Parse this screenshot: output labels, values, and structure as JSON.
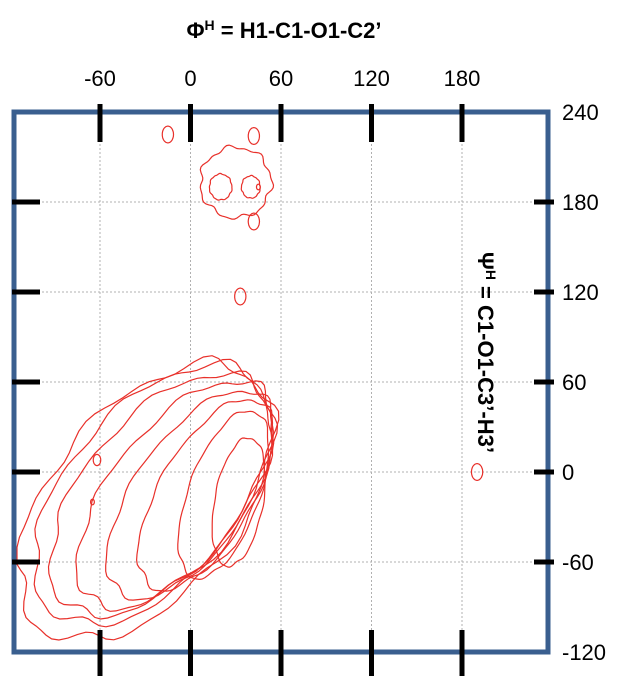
{
  "chart_data": {
    "type": "contour",
    "title": "",
    "x_axis": {
      "label_symbol": "Φ",
      "label_superscript": "H",
      "label_rest": " = H1-C1-O1-C2’",
      "range": [
        -60,
        180
      ],
      "ticks": [
        -60,
        0,
        60,
        120,
        180
      ],
      "tick_labels": [
        "-60",
        "0",
        "60",
        "120",
        "180"
      ]
    },
    "y_axis": {
      "label_symbol": "Ψ",
      "label_superscript": "H",
      "label_rest": " = C1-O1-C3’-H3’",
      "range": [
        -120,
        240
      ],
      "ticks": [
        -120,
        -60,
        0,
        60,
        120,
        180,
        240
      ],
      "tick_labels": [
        "-120",
        "-60",
        "0",
        "60",
        "120",
        "180",
        "240"
      ]
    },
    "grid": true,
    "line_color": "#e8302a",
    "frame_color": "#3a5f8f",
    "grid_color": "#b0b0b0",
    "contours": [
      {
        "cx": -30,
        "cy": -20,
        "rx": 100,
        "ry": 175,
        "rot": -40,
        "wobble": 0.06
      },
      {
        "cx": -25,
        "cy": -15,
        "rx": 92,
        "ry": 165,
        "rot": -40,
        "wobble": 0.05
      },
      {
        "cx": -20,
        "cy": -15,
        "rx": 82,
        "ry": 155,
        "rot": -40,
        "wobble": 0.05
      },
      {
        "cx": -10,
        "cy": -15,
        "rx": 70,
        "ry": 145,
        "rot": -38,
        "wobble": 0.05
      },
      {
        "cx": 0,
        "cy": -15,
        "rx": 60,
        "ry": 130,
        "rot": -35,
        "wobble": 0.04
      },
      {
        "cx": 10,
        "cy": -15,
        "rx": 50,
        "ry": 115,
        "rot": -30,
        "wobble": 0.04
      },
      {
        "cx": 22,
        "cy": -15,
        "rx": 38,
        "ry": 95,
        "rot": -20,
        "wobble": 0.03
      },
      {
        "cx": 32,
        "cy": -20,
        "rx": 26,
        "ry": 70,
        "rot": -10,
        "wobble": 0.03
      },
      {
        "cx": 30,
        "cy": 193,
        "rx": 38,
        "ry": 38,
        "rot": 0,
        "wobble": 0.08
      },
      {
        "cx": 20,
        "cy": 190,
        "rx": 12,
        "ry": 14,
        "rot": 0,
        "wobble": 0.05
      },
      {
        "cx": 40,
        "cy": 190,
        "rx": 10,
        "ry": 12,
        "rot": 0,
        "wobble": 0.05
      },
      {
        "cx": 42,
        "cy": 224,
        "rx": 6,
        "ry": 9,
        "rot": 0,
        "wobble": 0
      },
      {
        "cx": -15,
        "cy": 225,
        "rx": 6,
        "ry": 9,
        "rot": 0,
        "wobble": 0
      },
      {
        "cx": 42,
        "cy": 167,
        "rx": 6,
        "ry": 9,
        "rot": 0,
        "wobble": 0
      },
      {
        "cx": 33,
        "cy": 117,
        "rx": 6,
        "ry": 9,
        "rot": 0,
        "wobble": 0
      },
      {
        "cx": 190,
        "cy": 0,
        "rx": 6,
        "ry": 9,
        "rot": 0,
        "wobble": 0
      },
      {
        "cx": -62,
        "cy": 8,
        "rx": 4,
        "ry": 6,
        "rot": 0,
        "wobble": 0
      },
      {
        "cx": -65,
        "cy": -20,
        "rx": 2,
        "ry": 3,
        "rot": 0,
        "wobble": 0
      },
      {
        "cx": 45,
        "cy": 190,
        "rx": 2,
        "ry": 3,
        "rot": 0,
        "wobble": 0
      }
    ]
  }
}
